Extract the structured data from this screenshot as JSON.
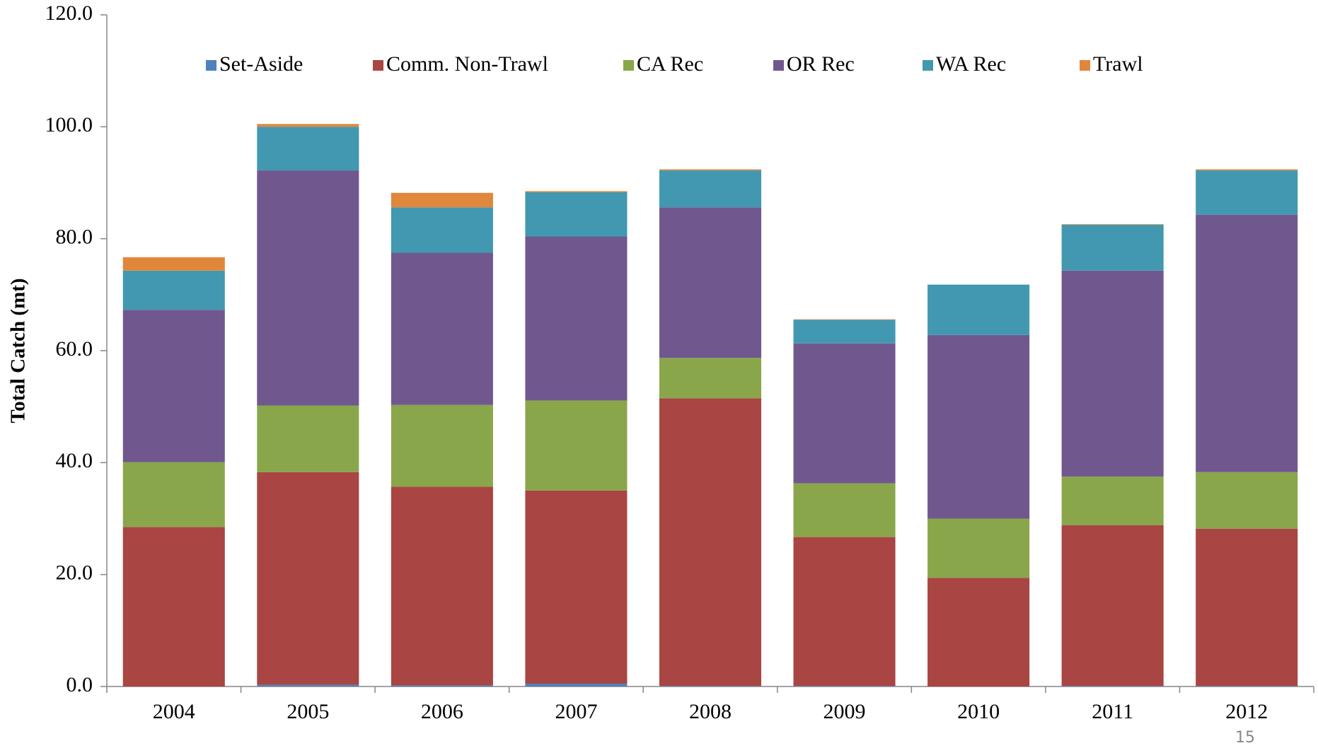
{
  "chart_data": {
    "type": "stacked_bar",
    "y_label": "Total Catch (mt)",
    "categories": [
      "2004",
      "2005",
      "2006",
      "2007",
      "2008",
      "2009",
      "2010",
      "2011",
      "2012"
    ],
    "series": [
      {
        "name": "Set-Aside",
        "color": "#4f81bd",
        "values": [
          0,
          0.3,
          0.2,
          0.5,
          0.1,
          0.1,
          0,
          0.1,
          0.1
        ]
      },
      {
        "name": "Comm. Non-Trawl",
        "color": "#a94542",
        "values": [
          28.5,
          38.0,
          35.5,
          34.5,
          51.4,
          26.6,
          19.4,
          28.7,
          28.1
        ]
      },
      {
        "name": "CA Rec",
        "color": "#8aa64b",
        "values": [
          11.6,
          11.9,
          14.6,
          16.1,
          7.2,
          9.6,
          10.6,
          8.7,
          10.1
        ]
      },
      {
        "name": "OR Rec",
        "color": "#70588f",
        "values": [
          27.2,
          42.0,
          27.2,
          29.3,
          26.9,
          25.0,
          32.8,
          36.8,
          46.0
        ]
      },
      {
        "name": "WA Rec",
        "color": "#4198b0",
        "values": [
          7.0,
          7.8,
          8.1,
          7.9,
          6.6,
          4.2,
          9.0,
          8.2,
          7.9
        ]
      },
      {
        "name": "Trawl",
        "color": "#e0873c",
        "values": [
          2.4,
          0.5,
          2.6,
          0.2,
          0.2,
          0.1,
          0,
          0.1,
          0.2
        ]
      }
    ],
    "ylim": [
      0,
      120
    ],
    "yticks": [
      {
        "value": 0,
        "label": "0.0"
      },
      {
        "value": 20,
        "label": "20.0"
      },
      {
        "value": 40,
        "label": "40.0"
      },
      {
        "value": 60,
        "label": "60.0"
      },
      {
        "value": 80,
        "label": "80.0"
      },
      {
        "value": 100,
        "label": "100.0"
      },
      {
        "value": 120,
        "label": "120.0"
      }
    ],
    "legend": "top",
    "page_number": "15"
  }
}
